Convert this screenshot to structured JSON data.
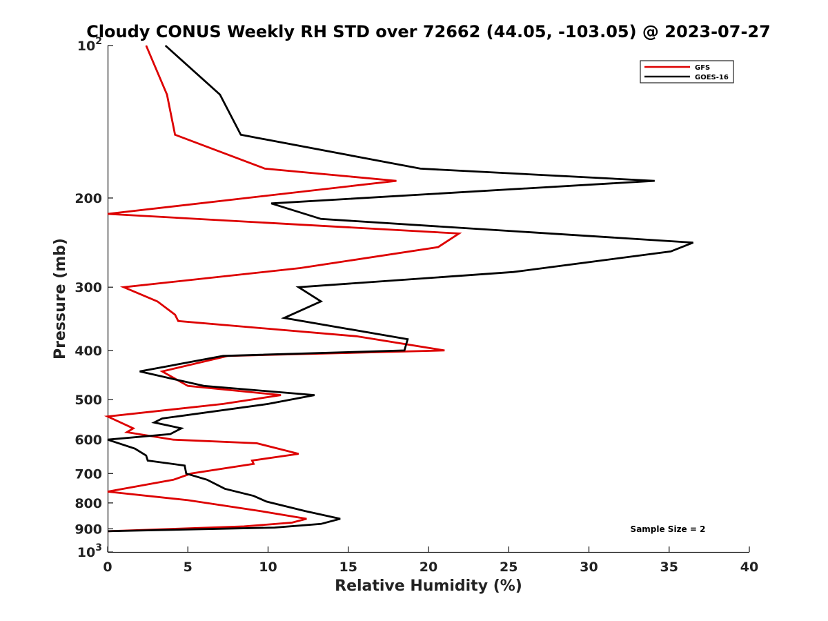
{
  "chart_data": {
    "type": "line",
    "title": "Cloudy CONUS Weekly RH STD over 72662 (44.05, -103.05) @ 2023-07-27",
    "xlabel": "Relative Humidity (%)",
    "ylabel": "Pressure (mb)",
    "xlim": [
      0,
      40
    ],
    "ylim": [
      100,
      1000
    ],
    "y_scale": "log",
    "y_reversed": true,
    "grid": false,
    "legend_position": "top-right",
    "x_ticks": [
      0,
      5,
      10,
      15,
      20,
      25,
      30,
      35,
      40
    ],
    "x_tick_labels": [
      "0",
      "5",
      "10",
      "15",
      "20",
      "25",
      "30",
      "35",
      "40"
    ],
    "y_ticks": [
      {
        "value": 100,
        "base": "10",
        "exp": "2"
      },
      {
        "value": 200,
        "label": "200"
      },
      {
        "value": 300,
        "label": "300"
      },
      {
        "value": 400,
        "label": "400"
      },
      {
        "value": 500,
        "label": "500"
      },
      {
        "value": 600,
        "label": "600"
      },
      {
        "value": 700,
        "label": "700"
      },
      {
        "value": 800,
        "label": "800"
      },
      {
        "value": 900,
        "label": "900"
      },
      {
        "value": 1000,
        "base": "10",
        "exp": "3"
      }
    ],
    "series": [
      {
        "name": "GFS",
        "color": "#dd0000",
        "points": [
          [
            2.4,
            100
          ],
          [
            3.7,
            125
          ],
          [
            4.2,
            150
          ],
          [
            9.8,
            175
          ],
          [
            18.0,
            185
          ],
          [
            0.0,
            215
          ],
          [
            21.9,
            235
          ],
          [
            20.6,
            250
          ],
          [
            12.0,
            275
          ],
          [
            1.0,
            300
          ],
          [
            3.1,
            320
          ],
          [
            4.2,
            340
          ],
          [
            4.4,
            350
          ],
          [
            15.5,
            375
          ],
          [
            21.0,
            400
          ],
          [
            7.5,
            410
          ],
          [
            3.4,
            440
          ],
          [
            5.0,
            470
          ],
          [
            10.8,
            490
          ],
          [
            7.2,
            510
          ],
          [
            0.0,
            540
          ],
          [
            1.6,
            570
          ],
          [
            1.2,
            580
          ],
          [
            4.1,
            600
          ],
          [
            9.3,
            610
          ],
          [
            11.9,
            640
          ],
          [
            9.0,
            660
          ],
          [
            9.1,
            670
          ],
          [
            5.2,
            700
          ],
          [
            4.1,
            720
          ],
          [
            0.0,
            760
          ],
          [
            5.0,
            790
          ],
          [
            9.5,
            830
          ],
          [
            12.4,
            860
          ],
          [
            11.5,
            875
          ],
          [
            8.5,
            890
          ],
          [
            0.0,
            910
          ]
        ]
      },
      {
        "name": "GOES-16",
        "color": "#000000",
        "points": [
          [
            3.6,
            100
          ],
          [
            7.0,
            125
          ],
          [
            8.3,
            150
          ],
          [
            19.5,
            175
          ],
          [
            34.1,
            185
          ],
          [
            10.2,
            205
          ],
          [
            13.3,
            220
          ],
          [
            36.5,
            245
          ],
          [
            35.1,
            255
          ],
          [
            25.3,
            280
          ],
          [
            11.9,
            300
          ],
          [
            13.3,
            320
          ],
          [
            11.0,
            345
          ],
          [
            18.7,
            380
          ],
          [
            18.5,
            400
          ],
          [
            7.2,
            410
          ],
          [
            2.0,
            440
          ],
          [
            6.0,
            470
          ],
          [
            12.9,
            490
          ],
          [
            10.0,
            510
          ],
          [
            3.4,
            545
          ],
          [
            2.9,
            555
          ],
          [
            4.6,
            570
          ],
          [
            3.9,
            585
          ],
          [
            0.0,
            600
          ],
          [
            1.7,
            625
          ],
          [
            2.4,
            645
          ],
          [
            2.5,
            660
          ],
          [
            4.8,
            675
          ],
          [
            4.9,
            700
          ],
          [
            6.2,
            720
          ],
          [
            7.3,
            750
          ],
          [
            9.1,
            775
          ],
          [
            9.9,
            795
          ],
          [
            12.3,
            830
          ],
          [
            14.5,
            860
          ],
          [
            13.3,
            880
          ],
          [
            10.4,
            895
          ],
          [
            0.0,
            910
          ]
        ]
      }
    ],
    "annotations": [
      {
        "text": "Sample Size = 2"
      }
    ]
  }
}
